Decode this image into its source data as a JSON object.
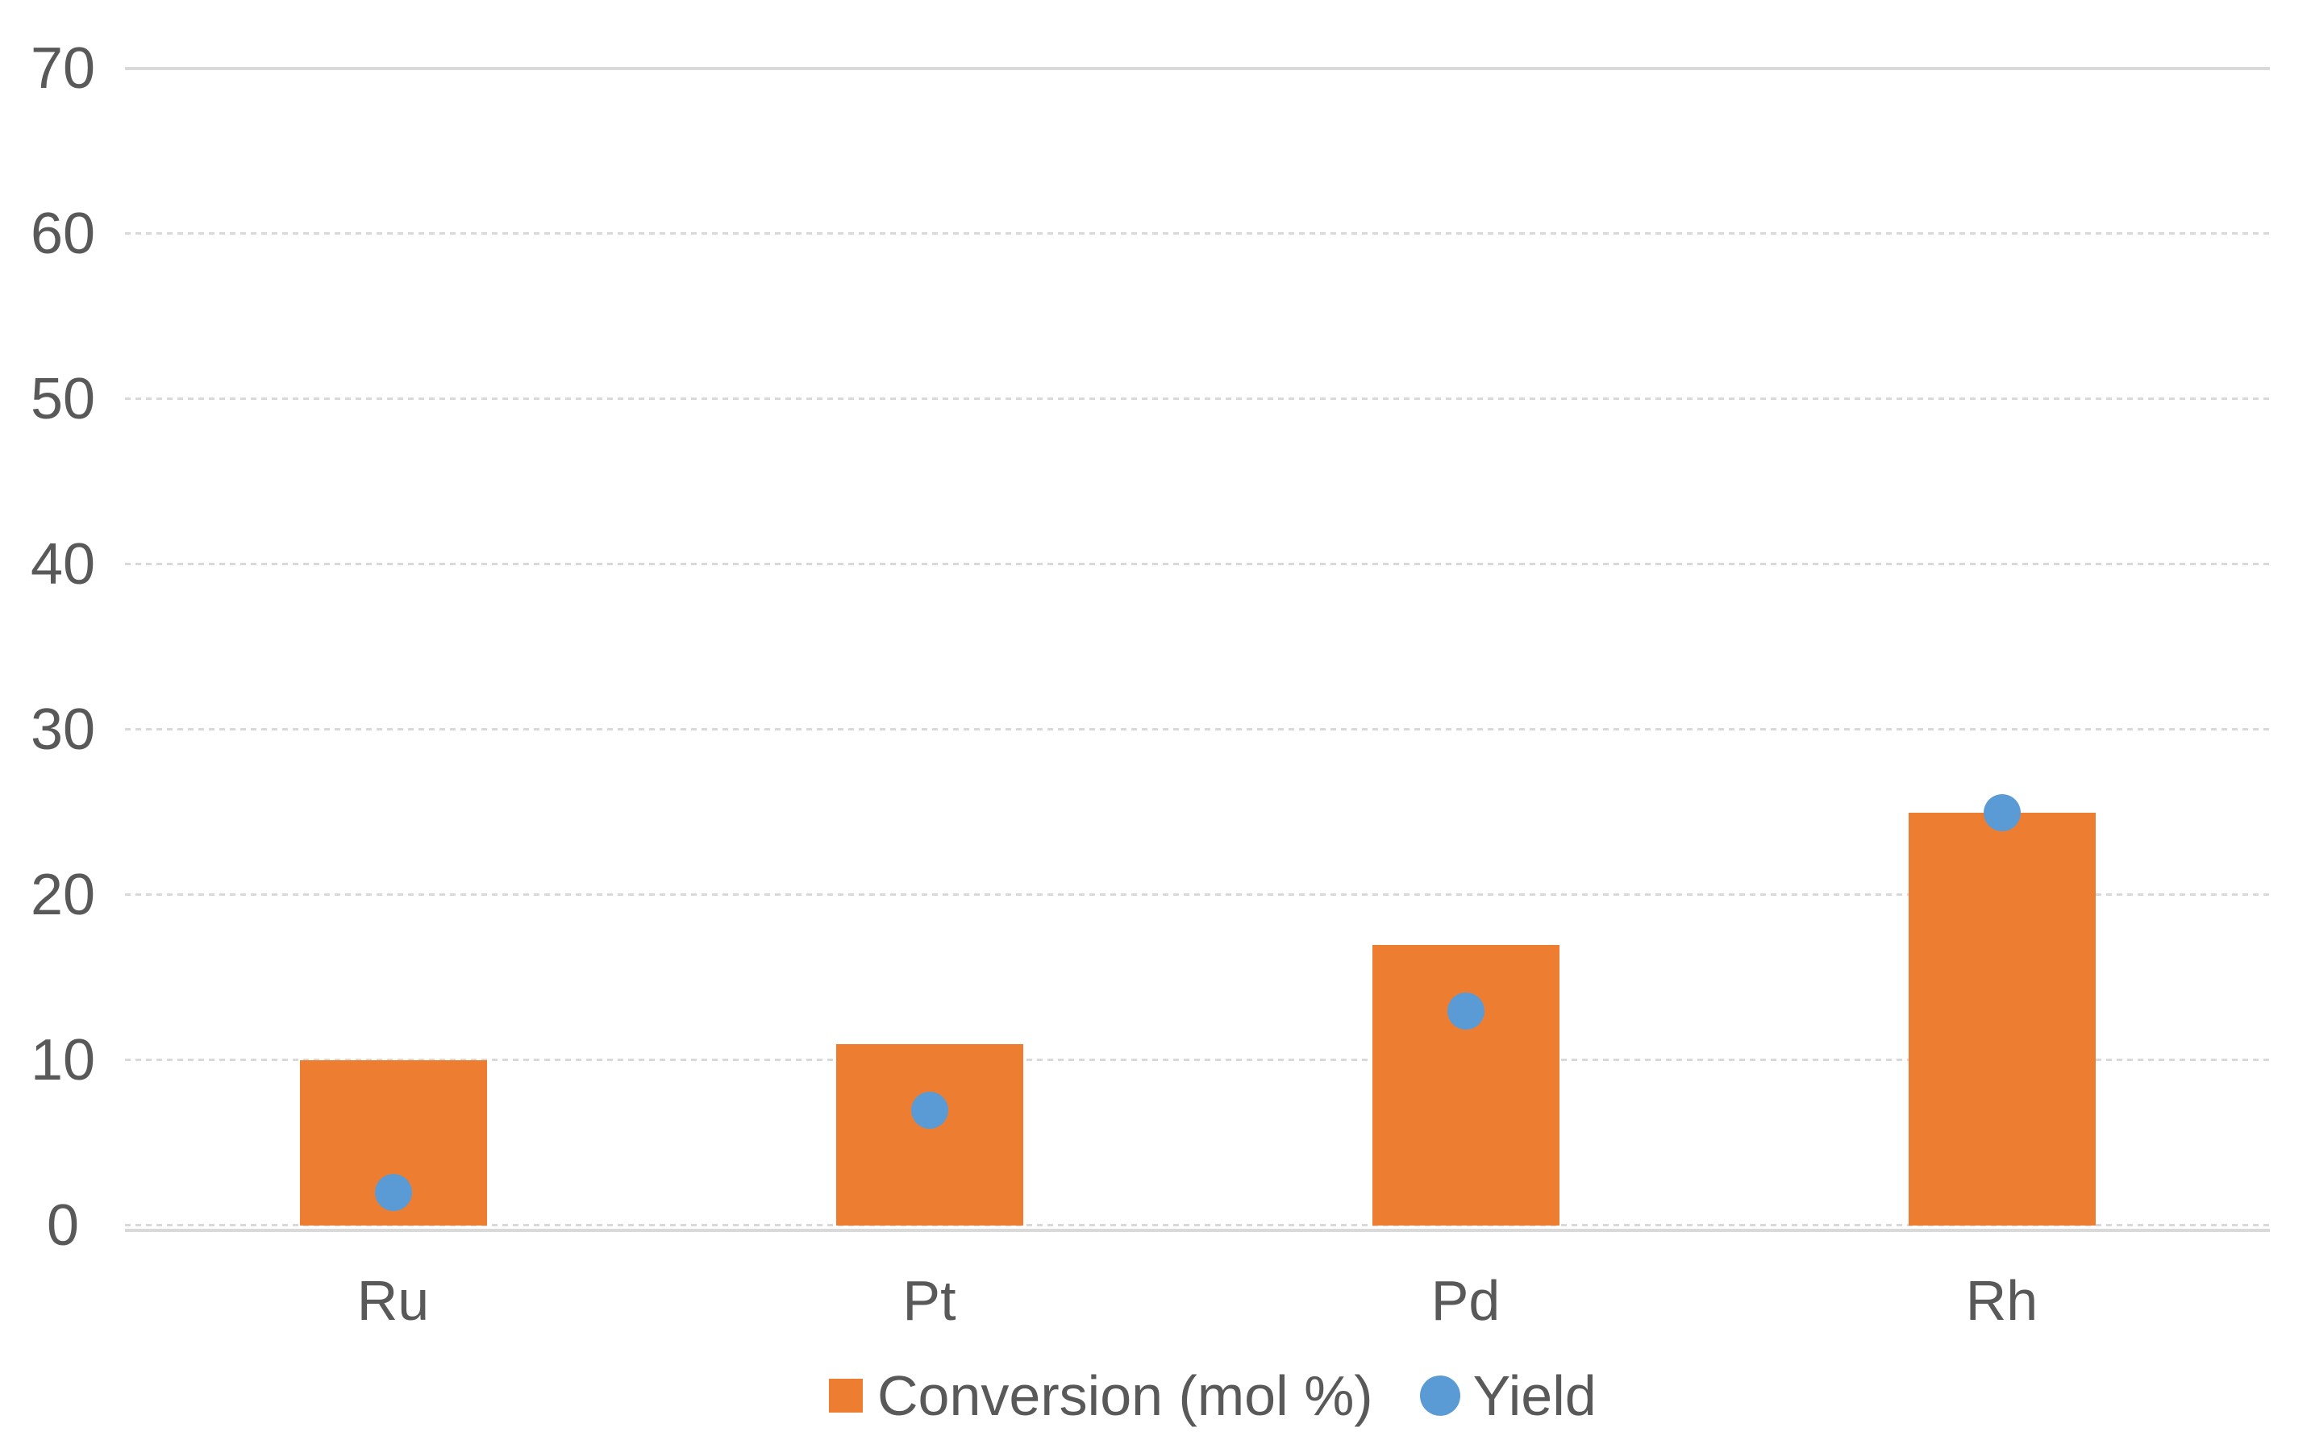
{
  "chart_data": {
    "type": "bar",
    "subtype": "combo-bar-scatter",
    "title": "",
    "xlabel": "",
    "ylabel": "",
    "categories": [
      "Ru",
      "Pt",
      "Pd",
      "Rh"
    ],
    "series": [
      {
        "name": "Conversion (mol %)",
        "type": "bar",
        "marker": "square",
        "color": "#ED7D31",
        "values": [
          10,
          11,
          17,
          25
        ]
      },
      {
        "name": "Yield",
        "type": "scatter",
        "marker": "circle",
        "color": "#5B9BD5",
        "values": [
          2,
          7,
          13,
          25
        ]
      }
    ],
    "ylim": [
      0,
      70
    ],
    "yticks": [
      0,
      10,
      20,
      30,
      40,
      50,
      60,
      70
    ],
    "ytick_labels": [
      "0",
      "10",
      "20",
      "30",
      "40",
      "50",
      "60",
      "70"
    ],
    "grid": "horizontal",
    "gridline_style": "dotted",
    "gridline_color": "#D9D9D9",
    "axis_text_color": "#595959",
    "background_color": "#FFFFFF",
    "legend_position": "bottom"
  },
  "legend": {
    "items": [
      {
        "label": "Conversion (mol %)",
        "marker": "square-icon",
        "color": "#ED7D31"
      },
      {
        "label": "Yield",
        "marker": "circle-icon",
        "color": "#5B9BD5"
      }
    ]
  }
}
